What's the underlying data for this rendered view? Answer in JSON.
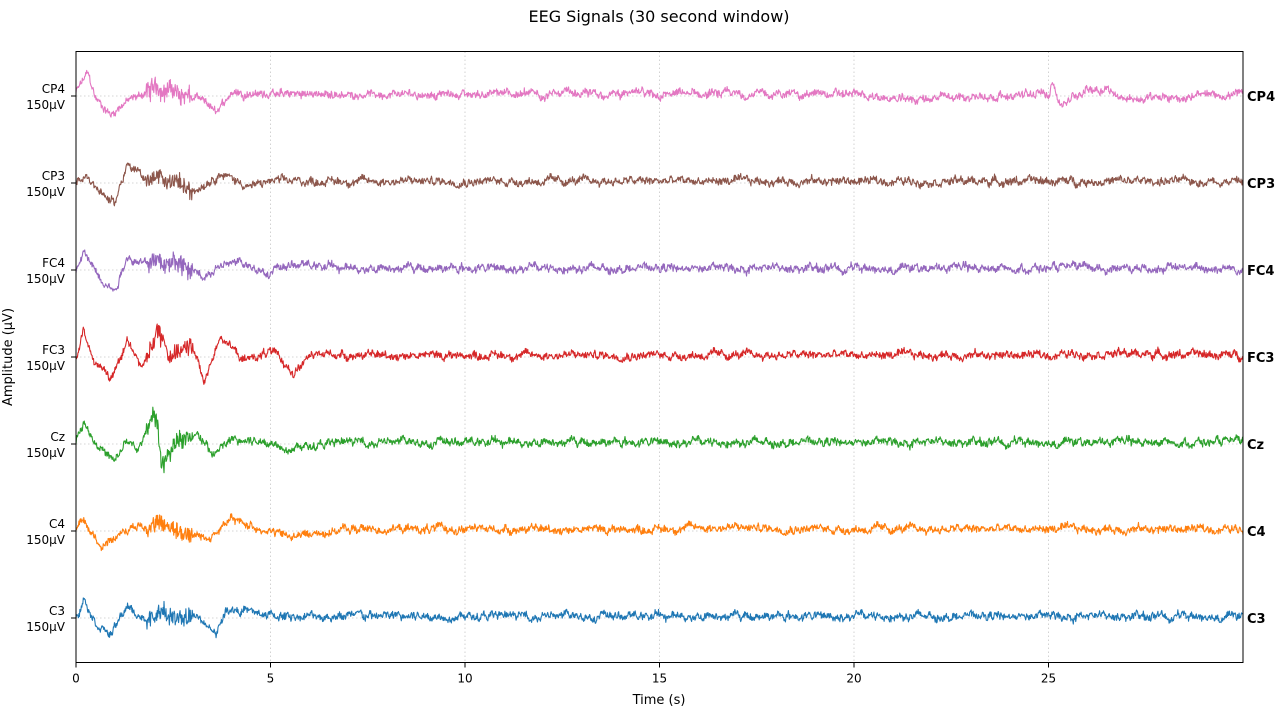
{
  "chart_data": {
    "type": "line",
    "title": "EEG Signals (30 second window)",
    "xlabel": "Time (s)",
    "ylabel": "Amplitude (μV)",
    "xlim": [
      0,
      30
    ],
    "x_ticks": [
      0,
      5,
      10,
      15,
      20,
      25
    ],
    "x_tick_labels": [
      "0",
      "5",
      "10",
      "15",
      "20",
      "25"
    ],
    "grid": true,
    "scale_label": "150μV",
    "series": [
      {
        "name": "CP4",
        "color": "#e377c2",
        "t": [
          0,
          0.3,
          0.5,
          0.9,
          1.2,
          2.0,
          2.5,
          3.2,
          3.6,
          4.0,
          5.0,
          7.0,
          10.0,
          15.0,
          20.0,
          21.0,
          25.0,
          25.1,
          25.3,
          26.0,
          26.5,
          27.0,
          30.0
        ],
        "v": [
          10,
          60,
          -5,
          -50,
          -20,
          20,
          15,
          -10,
          -40,
          10,
          5,
          5,
          5,
          5,
          5,
          -10,
          5,
          45,
          -25,
          20,
          20,
          -10,
          5
        ]
      },
      {
        "name": "CP3",
        "color": "#8c564b",
        "t": [
          0,
          0.3,
          0.6,
          1.0,
          1.3,
          1.8,
          2.3,
          3.0,
          3.7,
          4.5,
          5.0,
          7.0,
          10.0,
          15.0,
          20.0,
          25.0,
          30.0
        ],
        "v": [
          0,
          20,
          -20,
          -55,
          50,
          10,
          15,
          -20,
          25,
          -10,
          5,
          5,
          5,
          5,
          5,
          5,
          5
        ]
      },
      {
        "name": "FC4",
        "color": "#9467bd",
        "t": [
          0,
          0.2,
          0.6,
          1.0,
          1.3,
          1.8,
          2.5,
          3.2,
          4.0,
          5.0,
          5.6,
          7.0,
          10.0,
          15.0,
          20.0,
          25.0,
          30.0
        ],
        "v": [
          -5,
          45,
          -15,
          -55,
          35,
          15,
          25,
          -15,
          20,
          -5,
          15,
          5,
          5,
          5,
          5,
          5,
          5
        ]
      },
      {
        "name": "FC3",
        "color": "#d62728",
        "t": [
          0,
          0.2,
          0.5,
          0.9,
          1.3,
          1.7,
          2.1,
          2.4,
          3.0,
          3.3,
          3.7,
          4.3,
          5.0,
          5.6,
          6.0,
          6.5,
          7.0,
          10.0,
          15.0,
          20.0,
          25.0,
          26.0,
          30.0
        ],
        "v": [
          0,
          70,
          -20,
          -60,
          40,
          -30,
          70,
          10,
          30,
          -70,
          60,
          -10,
          15,
          -40,
          0,
          10,
          5,
          5,
          5,
          5,
          5,
          10,
          5
        ]
      },
      {
        "name": "Cz",
        "color": "#2ca02c",
        "t": [
          0,
          0.2,
          0.5,
          1.0,
          1.3,
          1.6,
          2.0,
          2.1,
          2.2,
          2.6,
          3.2,
          3.5,
          4.0,
          5.0,
          5.5,
          7.0,
          10.0,
          15.0,
          20.0,
          25.0,
          30.0
        ],
        "v": [
          10,
          60,
          5,
          -50,
          10,
          -20,
          85,
          50,
          -65,
          15,
          20,
          -30,
          10,
          5,
          -10,
          5,
          5,
          5,
          5,
          5,
          5
        ]
      },
      {
        "name": "C4",
        "color": "#ff7f0e",
        "t": [
          0,
          0.2,
          0.6,
          1.0,
          1.4,
          2.0,
          2.6,
          3.4,
          4.0,
          4.8,
          5.5,
          7.0,
          10.0,
          15.0,
          16.0,
          20.0,
          25.0,
          30.0
        ],
        "v": [
          5,
          25,
          -35,
          -20,
          10,
          15,
          0,
          -20,
          30,
          5,
          -15,
          5,
          5,
          5,
          10,
          5,
          5,
          5
        ]
      },
      {
        "name": "C3",
        "color": "#1f77b4",
        "t": [
          0,
          0.2,
          0.5,
          0.9,
          1.3,
          1.8,
          2.2,
          2.6,
          3.0,
          3.6,
          3.9,
          4.3,
          5.0,
          7.0,
          10.0,
          15.0,
          20.0,
          25.0,
          30.0
        ],
        "v": [
          -5,
          55,
          -10,
          -45,
          30,
          -10,
          20,
          -10,
          10,
          -40,
          25,
          20,
          5,
          5,
          5,
          5,
          5,
          5,
          5
        ]
      }
    ]
  }
}
